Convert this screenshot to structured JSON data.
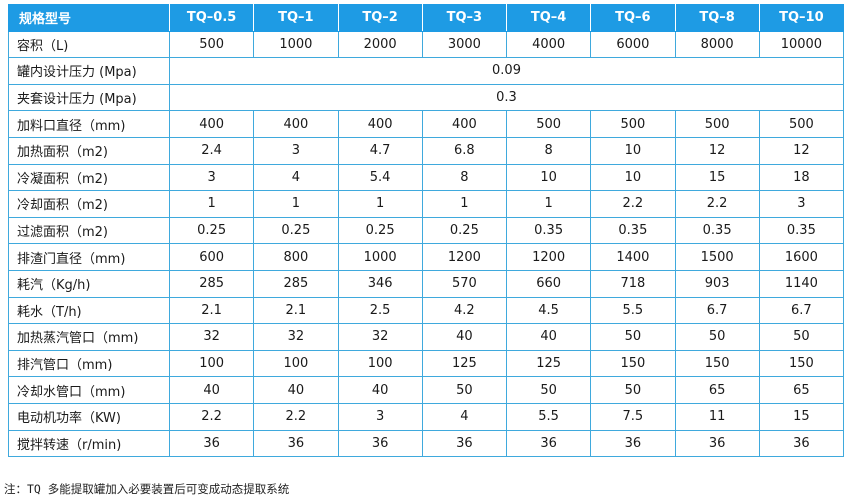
{
  "table": {
    "header": [
      "规格型号",
      "TQ–0.5",
      "TQ–1",
      "TQ–2",
      "TQ–3",
      "TQ–4",
      "TQ–6",
      "TQ–8",
      "TQ–10"
    ],
    "rows": [
      {
        "label": "容积（L)",
        "values": [
          "500",
          "1000",
          "2000",
          "3000",
          "4000",
          "6000",
          "8000",
          "10000"
        ]
      },
      {
        "label": "罐内设计压力 (Mpa)",
        "merged": "0.09"
      },
      {
        "label": "夹套设计压力 (Mpa)",
        "merged": "0.3"
      },
      {
        "label": "加料口直径（mm)",
        "values": [
          "400",
          "400",
          "400",
          "400",
          "500",
          "500",
          "500",
          "500"
        ]
      },
      {
        "label": "加热面积（m2)",
        "values": [
          "2.4",
          "3",
          "4.7",
          "6.8",
          "8",
          "10",
          "12",
          "12"
        ]
      },
      {
        "label": "冷凝面积（m2)",
        "values": [
          "3",
          "4",
          "5.4",
          "8",
          "10",
          "10",
          "15",
          "18"
        ]
      },
      {
        "label": "冷却面积（m2)",
        "values": [
          "1",
          "1",
          "1",
          "1",
          "1",
          "2.2",
          "2.2",
          "3"
        ]
      },
      {
        "label": "过滤面积（m2)",
        "values": [
          "0.25",
          "0.25",
          "0.25",
          "0.25",
          "0.35",
          "0.35",
          "0.35",
          "0.35"
        ]
      },
      {
        "label": "排渣门直径（mm)",
        "values": [
          "600",
          "800",
          "1000",
          "1200",
          "1200",
          "1400",
          "1500",
          "1600"
        ]
      },
      {
        "label": "耗汽（Kg/h)",
        "values": [
          "285",
          "285",
          "346",
          "570",
          "660",
          "718",
          "903",
          "1140"
        ]
      },
      {
        "label": "耗水（T/h)",
        "values": [
          "2.1",
          "2.1",
          "2.5",
          "4.2",
          "4.5",
          "5.5",
          "6.7",
          "6.7"
        ]
      },
      {
        "label": "加热蒸汽管口（mm)",
        "values": [
          "32",
          "32",
          "32",
          "40",
          "40",
          "50",
          "50",
          "50"
        ]
      },
      {
        "label": "排汽管口（mm)",
        "values": [
          "100",
          "100",
          "100",
          "125",
          "125",
          "150",
          "150",
          "150"
        ]
      },
      {
        "label": "冷却水管口（mm)",
        "values": [
          "40",
          "40",
          "40",
          "50",
          "50",
          "50",
          "65",
          "65"
        ]
      },
      {
        "label": "电动机功率（KW)",
        "values": [
          "2.2",
          "2.2",
          "3",
          "4",
          "5.5",
          "7.5",
          "11",
          "15"
        ]
      },
      {
        "label": "搅拌转速（r/min)",
        "values": [
          "36",
          "36",
          "36",
          "36",
          "36",
          "36",
          "36",
          "36"
        ]
      }
    ]
  },
  "note": "注：TQ 多能提取罐加入必要装置后可变成动态提取系统",
  "colors": {
    "header_bg": "#1e9be4",
    "grid": "#3fa9dd"
  }
}
